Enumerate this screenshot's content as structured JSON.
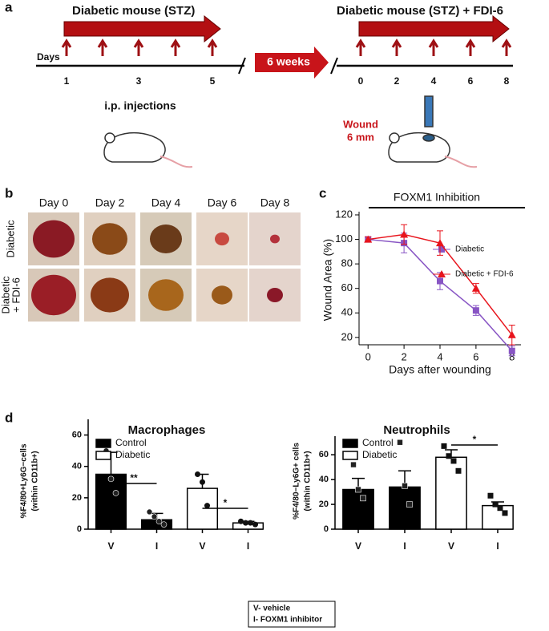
{
  "panel_a": {
    "label": "a",
    "left_bar": "Diabetic mouse (STZ)",
    "days_label": "Days",
    "left_days": [
      "1",
      "3",
      "5"
    ],
    "injections": "i.p. injections",
    "gap": "6 weeks",
    "right_bar": "Diabetic mouse (STZ)  +  FDI-6",
    "right_days": [
      "0",
      "2",
      "4",
      "6",
      "8"
    ],
    "wound": [
      "Wound",
      "6 mm"
    ]
  },
  "panel_b": {
    "label": "b",
    "days": [
      "Day 0",
      "Day 2",
      "Day 4",
      "Day 6",
      "Day 8"
    ],
    "rows": [
      [
        "Diabetic"
      ],
      [
        "Diabetic",
        "+ FDI-6"
      ]
    ]
  },
  "key": [
    "V- vehicle",
    "I-  FOXM1 inhibitor"
  ],
  "chart_data": [
    {
      "type": "line",
      "label": "c",
      "title": "FOXM1 Inhibition",
      "xlabel": "Days after wounding",
      "ylabel": "Wound Area (%)",
      "x": [
        0,
        2,
        4,
        6,
        8
      ],
      "xlim": [
        -0.5,
        8.5
      ],
      "xticks": [
        0,
        2,
        4,
        6,
        8
      ],
      "ylim": [
        14,
        120
      ],
      "yticks": [
        20,
        40,
        60,
        80,
        100,
        120
      ],
      "series": [
        {
          "name": "Diabetic",
          "color": "#8855c4",
          "values": [
            100,
            97,
            66,
            42,
            9
          ],
          "errors": [
            2,
            8,
            7,
            4,
            4
          ]
        },
        {
          "name": "Diabetic + FDI-6",
          "color": "#e8141c",
          "values": [
            100,
            104,
            97,
            60,
            22
          ],
          "errors": [
            2,
            8,
            10,
            4,
            8
          ]
        }
      ]
    },
    {
      "type": "bar",
      "label": "d",
      "title": "Macrophages",
      "ylabel": [
        "%F4/80+Ly6G−cells",
        "(within CD11b+)"
      ],
      "categories": [
        "V",
        "I",
        "V",
        "I"
      ],
      "ylim": [
        0,
        70
      ],
      "yticks": [
        0,
        20,
        40,
        60
      ],
      "significance": [
        "**",
        "*"
      ],
      "series": [
        {
          "name": "Control",
          "color": "#000000",
          "values": [
            35,
            6,
            null,
            null
          ],
          "errors": [
            14,
            4,
            null,
            null
          ],
          "points": [
            [
              50,
              32,
              23
            ],
            [
              11,
              8,
              5,
              3
            ],
            null,
            null
          ]
        },
        {
          "name": "Diabetic",
          "color": "#ffffff",
          "values": [
            null,
            null,
            26,
            4
          ],
          "errors": [
            null,
            null,
            9,
            1
          ],
          "points": [
            null,
            null,
            [
              35,
              30,
              15
            ],
            [
              5,
              4,
              4,
              3
            ]
          ]
        }
      ]
    },
    {
      "type": "bar",
      "title": "Neutrophils",
      "ylabel": [
        "%F4/80−Ly6G+ cells",
        "(within CD11b+)"
      ],
      "categories": [
        "V",
        "I",
        "V",
        "I"
      ],
      "ylim": [
        0,
        75
      ],
      "yticks": [
        0,
        20,
        40,
        60
      ],
      "significance": [
        "*"
      ],
      "series": [
        {
          "name": "Control",
          "color": "#000000",
          "values": [
            32,
            34,
            null,
            null
          ],
          "errors": [
            9,
            13,
            null,
            null
          ],
          "points": [
            [
              52,
              32,
              25
            ],
            [
              70,
              35,
              20
            ],
            null,
            null
          ]
        },
        {
          "name": "Diabetic",
          "color": "#ffffff",
          "values": [
            null,
            null,
            58,
            19
          ],
          "errors": [
            null,
            null,
            6,
            3
          ],
          "points": [
            null,
            null,
            [
              67,
              59,
              55,
              47
            ],
            [
              27,
              20,
              17,
              13
            ]
          ]
        }
      ]
    }
  ]
}
